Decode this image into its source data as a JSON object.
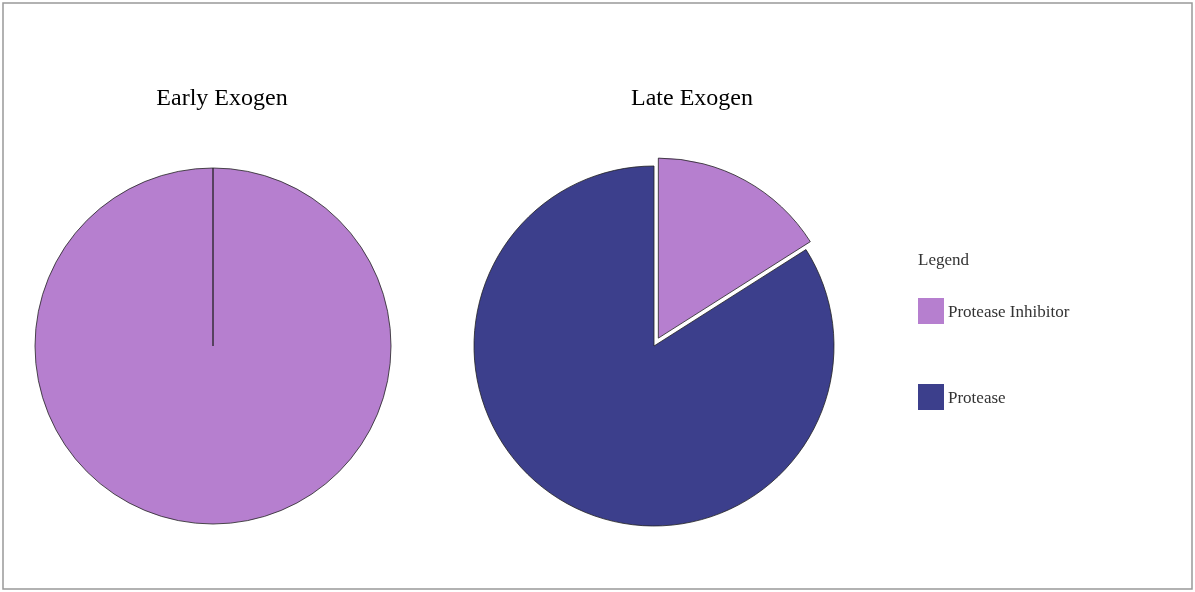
{
  "chart_data": [
    {
      "type": "pie",
      "title": "Early Exogen",
      "categories": [
        null,
        null
      ],
      "values": [
        100,
        0
      ],
      "colors": [
        "#b67fcf",
        "#3c3f8c"
      ],
      "legend": false
    },
    {
      "type": "pie",
      "title": "Late Exogen",
      "categories": [
        "Protease Inhibitor",
        "Protease"
      ],
      "values": [
        16,
        84
      ],
      "colors": [
        "#b67fcf",
        "#3c3f8c"
      ],
      "legend": "right",
      "legend_title": "Legend"
    }
  ]
}
